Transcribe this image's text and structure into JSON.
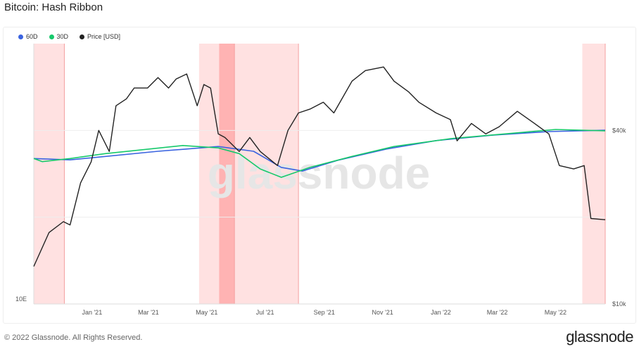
{
  "title": "Bitcoin: Hash Ribbon",
  "footer": "© 2022 Glassnode. All Rights Reserved.",
  "logo": "glassnode",
  "watermark": "glassnode",
  "chart_data": {
    "type": "line",
    "title": "Bitcoin: Hash Ribbon",
    "legend": [
      {
        "name": "60D",
        "color": "#3a63e0"
      },
      {
        "name": "30D",
        "color": "#16c96b"
      },
      {
        "name": "Price [USD]",
        "color": "#222222"
      }
    ],
    "legend_position": "top-left",
    "x_range": [
      "2020-11-01",
      "2022-06-22"
    ],
    "x_ticks": [
      {
        "date": "2021-01-01",
        "label": "Jan '21"
      },
      {
        "date": "2021-03-01",
        "label": "Mar '21"
      },
      {
        "date": "2021-05-01",
        "label": "May '21"
      },
      {
        "date": "2021-07-01",
        "label": "Jul '21"
      },
      {
        "date": "2021-09-01",
        "label": "Sep '21"
      },
      {
        "date": "2021-11-01",
        "label": "Nov '21"
      },
      {
        "date": "2022-01-01",
        "label": "Jan '22"
      },
      {
        "date": "2022-03-01",
        "label": "Mar '22"
      },
      {
        "date": "2022-05-01",
        "label": "May '22"
      }
    ],
    "left_axis": {
      "scale": "log",
      "range": [
        10,
        1000
      ],
      "unit": "EH/s",
      "ticks": [
        {
          "value": 10,
          "label": "10E"
        }
      ]
    },
    "right_axis": {
      "scale": "log",
      "range": [
        10000,
        80000
      ],
      "ticks": [
        {
          "value": 10000,
          "label": "$10k"
        },
        {
          "value": 40000,
          "label": "$40k"
        }
      ]
    },
    "capitulation_bands": [
      {
        "start": "2020-11-01",
        "end": "2020-12-03",
        "intensity": "light"
      },
      {
        "start": "2021-04-23",
        "end": "2021-08-05",
        "intensity": "light"
      },
      {
        "start": "2021-05-14",
        "end": "2021-05-30",
        "intensity": "strong"
      },
      {
        "start": "2022-05-29",
        "end": "2022-06-22",
        "intensity": "light"
      }
    ],
    "series": [
      {
        "name": "60D",
        "axis": "left",
        "color": "#3a63e0",
        "points": [
          [
            "2020-11-01",
            131
          ],
          [
            "2020-12-09",
            128
          ],
          [
            "2021-03-11",
            149
          ],
          [
            "2021-05-13",
            162
          ],
          [
            "2021-06-19",
            149
          ],
          [
            "2021-07-18",
            112
          ],
          [
            "2021-08-09",
            105
          ],
          [
            "2021-09-15",
            127
          ],
          [
            "2021-11-05",
            155
          ],
          [
            "2021-12-27",
            180
          ],
          [
            "2022-02-24",
            198
          ],
          [
            "2022-04-24",
            211
          ],
          [
            "2022-06-22",
            216
          ]
        ]
      },
      {
        "name": "30D",
        "axis": "left",
        "color": "#16c96b",
        "points": [
          [
            "2020-11-01",
            131
          ],
          [
            "2020-11-10",
            124
          ],
          [
            "2020-12-09",
            131
          ],
          [
            "2021-01-15",
            143
          ],
          [
            "2021-04-06",
            165
          ],
          [
            "2021-05-13",
            158
          ],
          [
            "2021-06-04",
            143
          ],
          [
            "2021-06-26",
            109
          ],
          [
            "2021-07-18",
            94
          ],
          [
            "2021-08-17",
            112
          ],
          [
            "2021-09-30",
            136
          ],
          [
            "2021-11-13",
            162
          ],
          [
            "2022-01-11",
            186
          ],
          [
            "2022-03-11",
            203
          ],
          [
            "2022-05-01",
            219
          ],
          [
            "2022-06-22",
            214
          ]
        ]
      },
      {
        "name": "Price [USD]",
        "axis": "right",
        "color": "#222222",
        "points": [
          [
            "2020-11-01",
            13500
          ],
          [
            "2020-11-17",
            17700
          ],
          [
            "2020-12-02",
            19300
          ],
          [
            "2020-12-09",
            18800
          ],
          [
            "2020-12-20",
            26300
          ],
          [
            "2020-12-31",
            31100
          ],
          [
            "2021-01-08",
            40000
          ],
          [
            "2021-01-19",
            33800
          ],
          [
            "2021-01-26",
            48700
          ],
          [
            "2021-02-06",
            51500
          ],
          [
            "2021-02-14",
            56100
          ],
          [
            "2021-02-28",
            56100
          ],
          [
            "2021-03-11",
            61000
          ],
          [
            "2021-03-22",
            56100
          ],
          [
            "2021-03-30",
            60300
          ],
          [
            "2021-04-10",
            62800
          ],
          [
            "2021-04-21",
            48700
          ],
          [
            "2021-04-28",
            57700
          ],
          [
            "2021-05-05",
            56100
          ],
          [
            "2021-05-13",
            38900
          ],
          [
            "2021-05-20",
            37800
          ],
          [
            "2021-06-04",
            33800
          ],
          [
            "2021-06-15",
            37800
          ],
          [
            "2021-06-26",
            33800
          ],
          [
            "2021-07-14",
            30200
          ],
          [
            "2021-07-25",
            40000
          ],
          [
            "2021-08-05",
            46000
          ],
          [
            "2021-08-17",
            47400
          ],
          [
            "2021-08-31",
            50100
          ],
          [
            "2021-09-11",
            46000
          ],
          [
            "2021-09-30",
            59300
          ],
          [
            "2021-10-14",
            64500
          ],
          [
            "2021-11-02",
            66400
          ],
          [
            "2021-11-13",
            59300
          ],
          [
            "2021-11-28",
            54500
          ],
          [
            "2021-12-09",
            50100
          ],
          [
            "2021-12-27",
            46000
          ],
          [
            "2022-01-11",
            43600
          ],
          [
            "2022-01-18",
            36800
          ],
          [
            "2022-02-02",
            42300
          ],
          [
            "2022-02-17",
            38900
          ],
          [
            "2022-03-03",
            41200
          ],
          [
            "2022-03-22",
            46600
          ],
          [
            "2022-04-09",
            42300
          ],
          [
            "2022-04-24",
            38900
          ],
          [
            "2022-05-05",
            30200
          ],
          [
            "2022-05-20",
            29400
          ],
          [
            "2022-05-31",
            30200
          ],
          [
            "2022-06-07",
            19800
          ],
          [
            "2022-06-22",
            19600
          ]
        ]
      }
    ]
  }
}
